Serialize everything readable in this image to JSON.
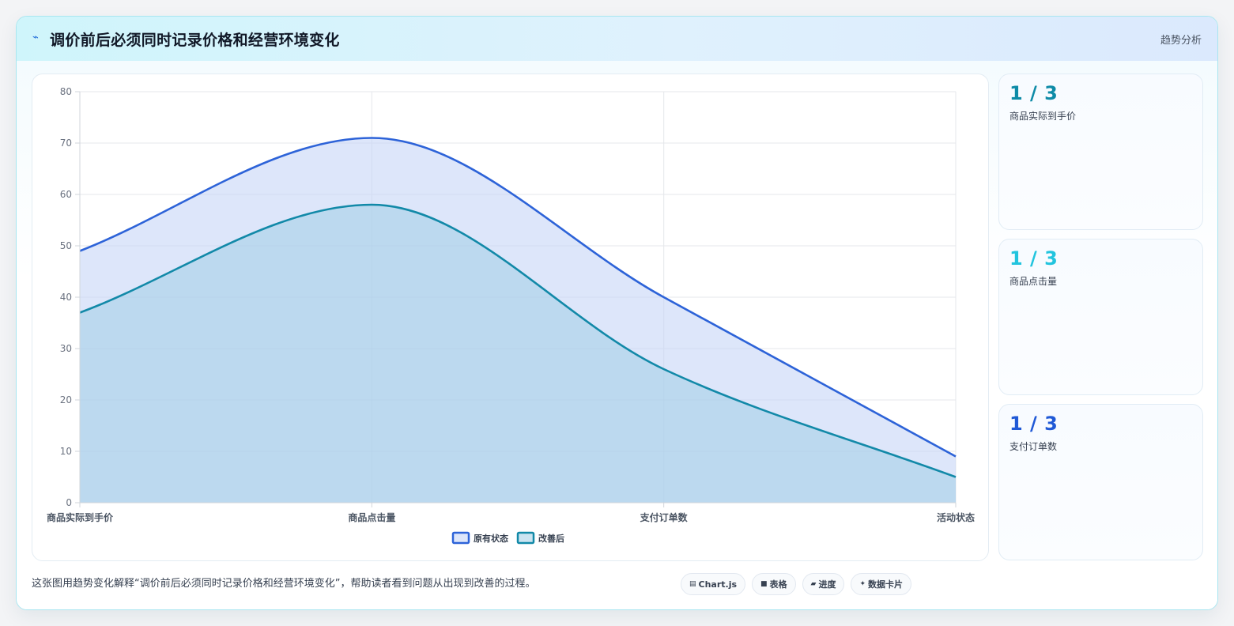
{
  "header": {
    "icon": "trend-line-icon",
    "title": "调价前后必须同时记录价格和经营环境变化",
    "tag": "趋势分析"
  },
  "stats": [
    {
      "value": "1 / 3",
      "label": "商品实际到手价",
      "color": "#0e8ba7"
    },
    {
      "value": "1 / 3",
      "label": "商品点击量",
      "color": "#22c4de"
    },
    {
      "value": "1 / 3",
      "label": "支付订单数",
      "color": "#2059d6"
    }
  ],
  "caption": "这张图用趋势变化解释“调价前后必须同时记录价格和经营环境变化”，帮助读者看到问题从出现到改善的过程。",
  "pills": [
    {
      "icon": "chart-icon",
      "glyph": "▤",
      "label": "Chart.js"
    },
    {
      "icon": "table-icon",
      "glyph": "■",
      "label": "表格"
    },
    {
      "icon": "progress-icon",
      "glyph": "▰",
      "label": "进度"
    },
    {
      "icon": "sparkle-icon",
      "glyph": "✦",
      "label": "数据卡片"
    }
  ],
  "chart_data": {
    "type": "area",
    "categories": [
      "商品实际到手价",
      "商品点击量",
      "支付订单数",
      "活动状态"
    ],
    "series": [
      {
        "name": "原有状态",
        "values": [
          49,
          71,
          40,
          9
        ],
        "color": "#2d63d8",
        "fill": "rgba(199, 214, 247, 0.6)"
      },
      {
        "name": "改善后",
        "values": [
          37,
          58,
          26,
          5
        ],
        "color": "#1289a8",
        "fill": "rgba(160, 205, 230, 0.55)"
      }
    ],
    "ylim": [
      0,
      80
    ],
    "yticks": [
      0,
      10,
      20,
      30,
      40,
      50,
      60,
      70,
      80
    ],
    "grid": true,
    "legend": "bottom-center",
    "title": "",
    "xlabel": "",
    "ylabel": ""
  }
}
